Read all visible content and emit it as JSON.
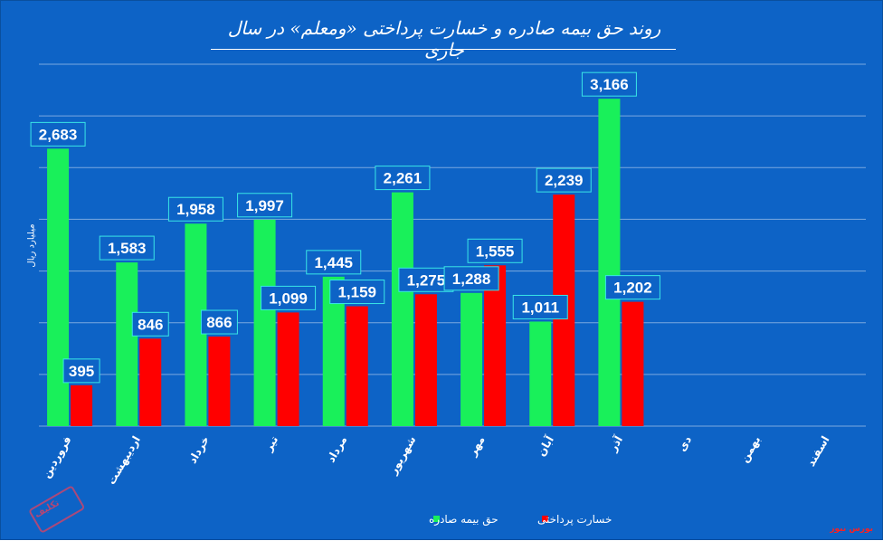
{
  "chart_data": {
    "type": "bar",
    "title": "روند حق بیمه صادره و خسارت پرداختی «ومعلم» در سال جاری",
    "ylabel": "میلیارد ریال",
    "categories": [
      "فروردین",
      "اردیبهشت",
      "خرداد",
      "تیر",
      "مرداد",
      "شهریور",
      "مهر",
      "آبان",
      "آذر",
      "دی",
      "بهمن",
      "اسفند"
    ],
    "series": [
      {
        "name": "حق بیمه صادره",
        "color": "#19f05a",
        "values": [
          2683,
          1583,
          1958,
          1997,
          1445,
          2261,
          1288,
          1011,
          3166,
          null,
          null,
          null
        ]
      },
      {
        "name": "خسارت پرداختی",
        "color": "#ff0000",
        "values": [
          395,
          846,
          866,
          1099,
          1159,
          1275,
          1555,
          2239,
          1202,
          null,
          null,
          null
        ]
      }
    ],
    "ylim": [
      0,
      3500
    ],
    "grid": true,
    "legend": "bottom"
  },
  "brand": "بورس نیوز",
  "logo_text": "تکلیف"
}
